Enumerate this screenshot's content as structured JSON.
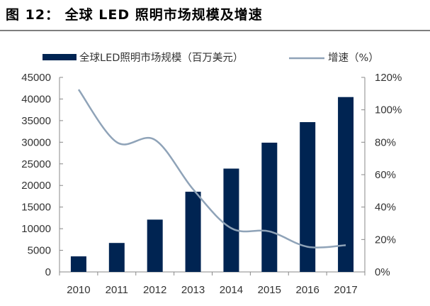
{
  "title": "图 12： 全球 LED 照明市场规模及增速",
  "chart_data": {
    "type": "bar+line",
    "title": "",
    "categories": [
      "2010",
      "2011",
      "2012",
      "2013",
      "2014",
      "2015",
      "2016",
      "2017"
    ],
    "series": [
      {
        "name": "全球LED照明市场规模（百万美元）",
        "type": "bar",
        "axis": "left",
        "color": "#002452",
        "values": [
          3600,
          6700,
          12100,
          18550,
          23900,
          29900,
          34650,
          40450
        ]
      },
      {
        "name": "增速（%）",
        "type": "line",
        "axis": "right",
        "color": "#8fa3b8",
        "values": [
          112.5,
          80,
          81.5,
          51,
          27,
          25,
          15.5,
          16.5
        ]
      }
    ],
    "left_axis": {
      "min": 0,
      "max": 45000,
      "ticks": [
        "0",
        "5000",
        "10000",
        "15000",
        "20000",
        "25000",
        "30000",
        "35000",
        "40000",
        "45000"
      ]
    },
    "right_axis": {
      "min": 0,
      "max": 120,
      "ticks": [
        "0%",
        "20%",
        "40%",
        "60%",
        "80%",
        "100%",
        "120%"
      ]
    },
    "legend_position": "top",
    "grid": false
  }
}
